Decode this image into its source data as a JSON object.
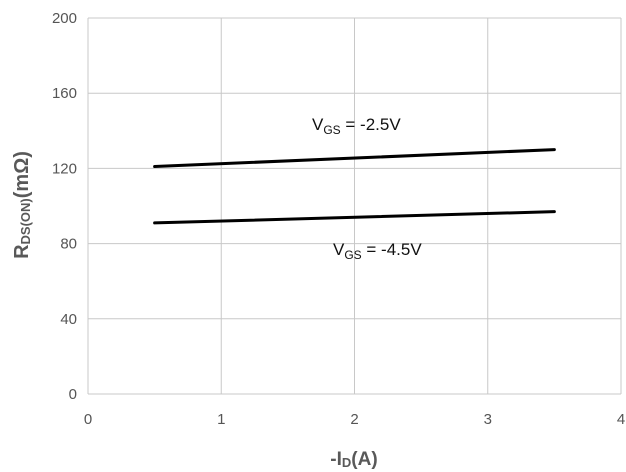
{
  "chart_data": {
    "type": "line",
    "xlabel": "-ID(A)",
    "xlabel_main": "-I",
    "xlabel_sub": "D",
    "xlabel_unit": "(A)",
    "ylabel": "RDS(ON)(mΩ)",
    "ylabel_main": "R",
    "ylabel_sub": "DS(ON)",
    "ylabel_unit": "(mΩ)",
    "xlim": [
      0,
      4
    ],
    "ylim": [
      0,
      200
    ],
    "x_ticks": [
      0,
      1,
      2,
      3,
      4
    ],
    "y_ticks": [
      0,
      40,
      80,
      120,
      160,
      200
    ],
    "x_tick_labels": [
      "0",
      "1",
      "2",
      "3",
      "4"
    ],
    "y_tick_labels": [
      "0",
      "40",
      "80",
      "120",
      "160",
      "200"
    ],
    "grid": true,
    "legend": "none",
    "series": [
      {
        "annotation_main": "V",
        "annotation_sub": "GS",
        "annotation_value": " = -2.5V",
        "x": [
          0.5,
          3.5
        ],
        "y": [
          121,
          130
        ]
      },
      {
        "annotation_main": "V",
        "annotation_sub": "GS",
        "annotation_value": " = -4.5V",
        "x": [
          0.5,
          3.5
        ],
        "y": [
          91,
          97
        ]
      }
    ],
    "colors": {
      "line": "#000000",
      "grid": "#c8c8c8",
      "tick_label": "#555555",
      "axis_title": "#595959"
    }
  }
}
